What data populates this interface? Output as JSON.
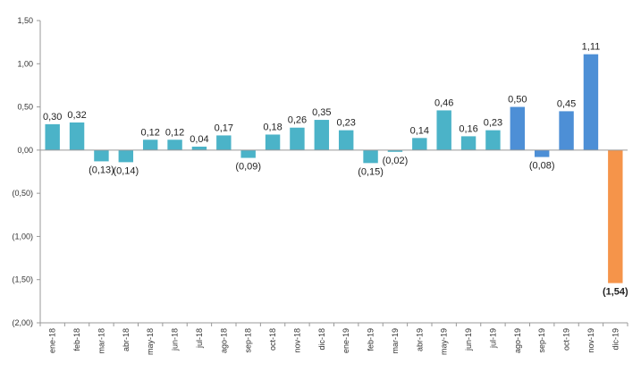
{
  "chart_data": {
    "type": "bar",
    "categories": [
      "ene-18",
      "feb-18",
      "mar-18",
      "abr-18",
      "may-18",
      "jun-18",
      "jul-18",
      "ago-18",
      "sep-18",
      "oct-18",
      "nov-18",
      "dic-18",
      "ene-19",
      "feb-19",
      "mar-19",
      "abr-19",
      "may-19",
      "jun-19",
      "jul-19",
      "ago-19",
      "sep-19",
      "oct-19",
      "nov-19",
      "dic-19"
    ],
    "values": [
      0.3,
      0.32,
      -0.13,
      -0.14,
      0.12,
      0.12,
      0.04,
      0.17,
      -0.09,
      0.18,
      0.26,
      0.35,
      0.23,
      -0.15,
      -0.02,
      0.14,
      0.46,
      0.16,
      0.23,
      0.5,
      -0.08,
      0.45,
      1.11,
      -1.54
    ],
    "data_labels": [
      "0,30",
      "0,32",
      "(0,13)",
      "(0,14)",
      "0,12",
      "0,12",
      "0,04",
      "0,17",
      "(0,09)",
      "0,18",
      "0,26",
      "0,35",
      "0,23",
      "(0,15)",
      "(0,02)",
      "0,14",
      "0,46",
      "0,16",
      "0,23",
      "0,50",
      "(0,08)",
      "0,45",
      "1,11",
      "(1,54)"
    ],
    "ylim": [
      -2.0,
      1.5
    ],
    "yticks": [
      1.5,
      1.0,
      0.5,
      0.0,
      -0.5,
      -1.0,
      -1.5,
      -2.0
    ],
    "ytick_labels": [
      "1,50",
      "1,00",
      "0,50",
      "0,00",
      "(0,50)",
      "(1,00)",
      "(1,50)",
      "(2,00)"
    ],
    "grid": false,
    "legend": "none",
    "colors": {
      "teal": "#4bb3c8",
      "blue": "#4d8fd6",
      "orange": "#f5944a",
      "axis": "#999999"
    },
    "bar_color_keys": [
      "teal",
      "teal",
      "teal",
      "teal",
      "teal",
      "teal",
      "teal",
      "teal",
      "teal",
      "teal",
      "teal",
      "teal",
      "teal",
      "teal",
      "teal",
      "teal",
      "teal",
      "teal",
      "teal",
      "blue",
      "blue",
      "blue",
      "blue",
      "orange"
    ],
    "bold_label_indices": [
      23
    ]
  }
}
